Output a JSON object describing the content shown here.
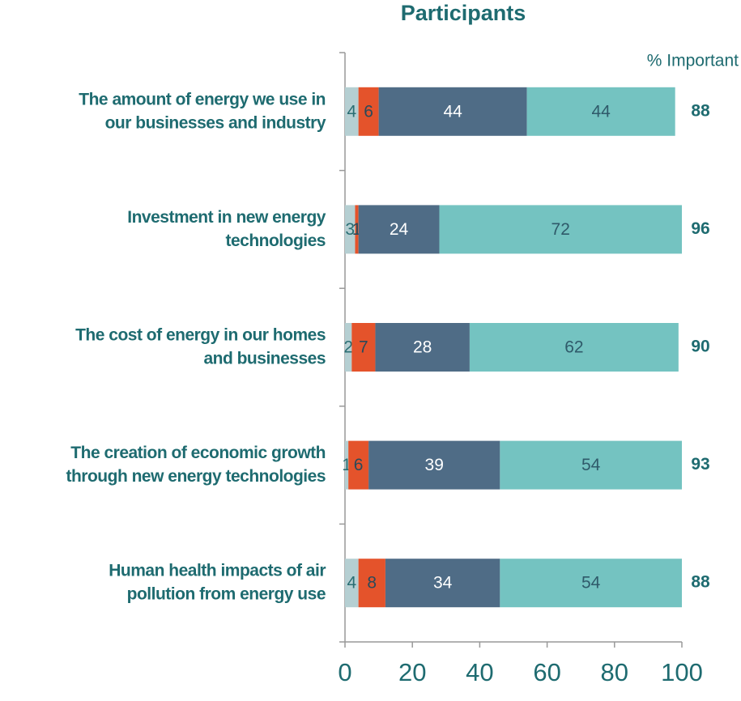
{
  "chart_data": {
    "type": "stacked_bar_horizontal",
    "title": "Participants",
    "annotation": "% Important",
    "categories": [
      "The amount of energy we use in\nour businesses and industry",
      "Investment in new energy\ntechnologies",
      "The cost of energy in our homes\nand businesses",
      "The creation of economic growth\nthrough new energy technologies",
      "Human health impacts of air\npollution from energy use"
    ],
    "series": [
      {
        "color": "#b5cfd2",
        "label_color": "#2a6e73",
        "values": [
          4,
          3,
          2,
          1,
          4
        ]
      },
      {
        "color": "#e4532b",
        "label_color": "#2a4a5a",
        "values": [
          6,
          1,
          7,
          6,
          8
        ]
      },
      {
        "color": "#4f6c86",
        "label_color": "#ffffff",
        "values": [
          44,
          24,
          28,
          39,
          34
        ]
      },
      {
        "color": "#74c3c1",
        "label_color": "#2f5a6a",
        "values": [
          44,
          72,
          62,
          54,
          54
        ]
      }
    ],
    "important_values": [
      88,
      96,
      90,
      93,
      88
    ],
    "xlim": [
      0,
      100
    ],
    "xticks": [
      0,
      20,
      40,
      60,
      80,
      100
    ]
  }
}
